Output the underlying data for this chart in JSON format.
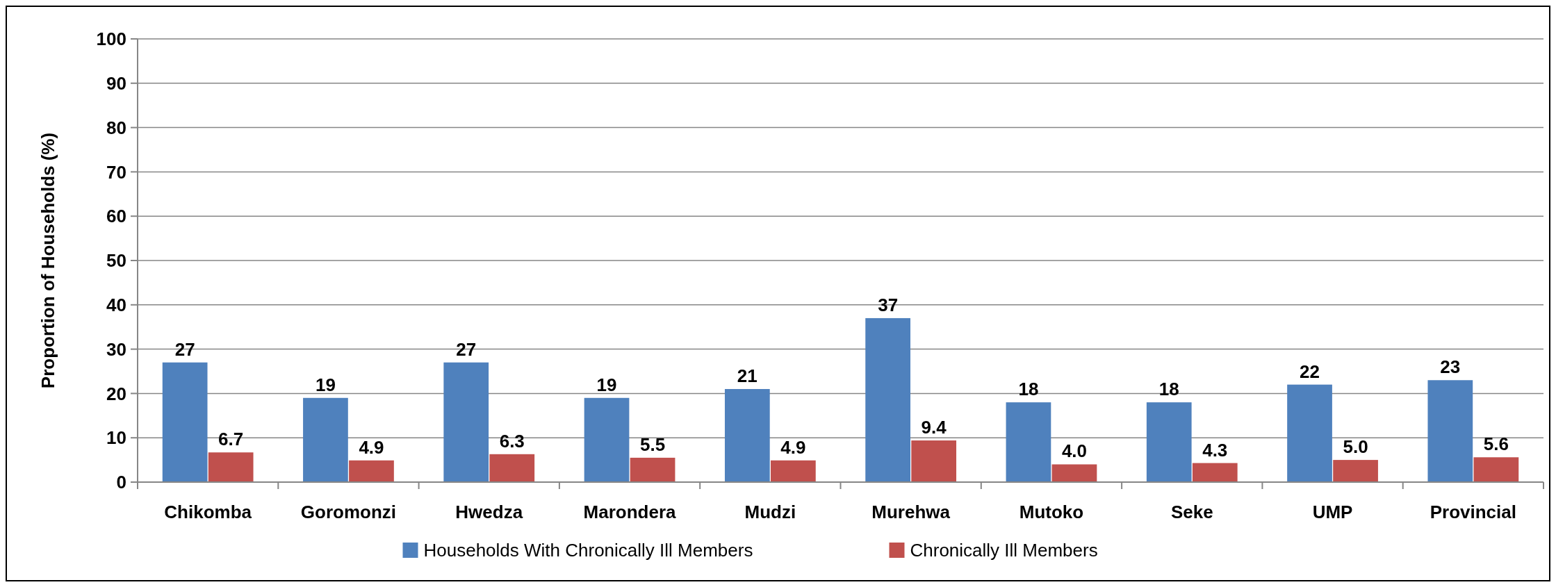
{
  "chart_data": {
    "type": "bar",
    "ylabel": "Proportion of Households (%)",
    "categories": [
      "Chikomba",
      "Goromonzi",
      "Hwedza",
      "Marondera",
      "Mudzi",
      "Murehwa",
      "Mutoko",
      "Seke",
      "UMP",
      "Provincial"
    ],
    "series": [
      {
        "name": "Households With Chronically Ill Members",
        "color": "#4f81bd",
        "values": [
          27,
          19,
          27,
          19,
          21,
          37,
          18,
          18,
          22,
          23
        ],
        "value_labels": [
          "27",
          "19",
          "27",
          "19",
          "21",
          "37",
          "18",
          "18",
          "22",
          "23"
        ]
      },
      {
        "name": "Chronically Ill Members",
        "color": "#c0504d",
        "values": [
          6.7,
          4.9,
          6.3,
          5.5,
          4.9,
          9.4,
          4.0,
          4.3,
          5.0,
          5.6
        ],
        "value_labels": [
          "6.7",
          "4.9",
          "6.3",
          "5.5",
          "4.9",
          "9.4",
          "4.0",
          "4.3",
          "5.0",
          "5.6"
        ]
      }
    ],
    "ylim": [
      0,
      100
    ],
    "yticks": [
      0,
      10,
      20,
      30,
      40,
      50,
      60,
      70,
      80,
      90,
      100
    ],
    "grid": "y",
    "legend": "bottom"
  }
}
